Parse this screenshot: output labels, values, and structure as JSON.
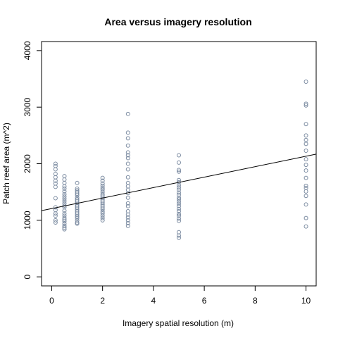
{
  "chart_data": {
    "type": "scatter",
    "title": "Area versus imagery resolution",
    "xlabel": "Imagery spatial resolution (m)",
    "ylabel": "Patch reef area (m^2)",
    "xlim": [
      -0.4,
      10.4
    ],
    "ylim": [
      -160,
      4160
    ],
    "xticks": [
      "0",
      "2",
      "4",
      "6",
      "8",
      "10"
    ],
    "yticks": [
      "0",
      "1000",
      "2000",
      "3000",
      "4000"
    ],
    "grid": false,
    "point_color": "#7a8aa0",
    "line_color": "#000000",
    "series": [
      {
        "points": [
          [
            0.15,
            2000
          ],
          [
            0.15,
            1960
          ],
          [
            0.15,
            1900
          ],
          [
            0.15,
            1820
          ],
          [
            0.15,
            1760
          ],
          [
            0.15,
            1700
          ],
          [
            0.15,
            1650
          ],
          [
            0.15,
            1590
          ],
          [
            0.15,
            1390
          ],
          [
            0.15,
            1230
          ],
          [
            0.15,
            1180
          ],
          [
            0.15,
            1120
          ],
          [
            0.15,
            1080
          ],
          [
            0.15,
            1000
          ],
          [
            0.15,
            960
          ],
          [
            0.5,
            1780
          ],
          [
            0.5,
            1720
          ],
          [
            0.5,
            1660
          ],
          [
            0.5,
            1600
          ],
          [
            0.5,
            1560
          ],
          [
            0.5,
            1510
          ],
          [
            0.5,
            1460
          ],
          [
            0.5,
            1420
          ],
          [
            0.5,
            1380
          ],
          [
            0.5,
            1340
          ],
          [
            0.5,
            1300
          ],
          [
            0.5,
            1260
          ],
          [
            0.5,
            1230
          ],
          [
            0.5,
            1170
          ],
          [
            0.5,
            1120
          ],
          [
            0.5,
            1080
          ],
          [
            0.5,
            1040
          ],
          [
            0.5,
            1010
          ],
          [
            0.5,
            980
          ],
          [
            0.5,
            940
          ],
          [
            0.5,
            900
          ],
          [
            0.5,
            870
          ],
          [
            0.5,
            840
          ],
          [
            1,
            1660
          ],
          [
            1,
            1560
          ],
          [
            1,
            1530
          ],
          [
            1,
            1500
          ],
          [
            1,
            1470
          ],
          [
            1,
            1440
          ],
          [
            1,
            1400
          ],
          [
            1,
            1370
          ],
          [
            1,
            1340
          ],
          [
            1,
            1310
          ],
          [
            1,
            1280
          ],
          [
            1,
            1250
          ],
          [
            1,
            1220
          ],
          [
            1,
            1190
          ],
          [
            1,
            1160
          ],
          [
            1,
            1130
          ],
          [
            1,
            1100
          ],
          [
            1,
            1070
          ],
          [
            1,
            1040
          ],
          [
            1,
            1000
          ],
          [
            1,
            960
          ],
          [
            1,
            940
          ],
          [
            2,
            1750
          ],
          [
            2,
            1700
          ],
          [
            2,
            1650
          ],
          [
            2,
            1610
          ],
          [
            2,
            1570
          ],
          [
            2,
            1540
          ],
          [
            2,
            1500
          ],
          [
            2,
            1460
          ],
          [
            2,
            1430
          ],
          [
            2,
            1400
          ],
          [
            2,
            1370
          ],
          [
            2,
            1340
          ],
          [
            2,
            1310
          ],
          [
            2,
            1280
          ],
          [
            2,
            1250
          ],
          [
            2,
            1220
          ],
          [
            2,
            1190
          ],
          [
            2,
            1150
          ],
          [
            2,
            1120
          ],
          [
            2,
            1080
          ],
          [
            2,
            1040
          ],
          [
            2,
            1000
          ],
          [
            3,
            2880
          ],
          [
            3,
            2550
          ],
          [
            3,
            2450
          ],
          [
            3,
            2320
          ],
          [
            3,
            2200
          ],
          [
            3,
            2150
          ],
          [
            3,
            2100
          ],
          [
            3,
            2000
          ],
          [
            3,
            1900
          ],
          [
            3,
            1760
          ],
          [
            3,
            1660
          ],
          [
            3,
            1600
          ],
          [
            3,
            1540
          ],
          [
            3,
            1480
          ],
          [
            3,
            1400
          ],
          [
            3,
            1300
          ],
          [
            3,
            1250
          ],
          [
            3,
            1160
          ],
          [
            3,
            1100
          ],
          [
            3,
            1050
          ],
          [
            3,
            1000
          ],
          [
            3,
            950
          ],
          [
            3,
            900
          ],
          [
            5,
            2150
          ],
          [
            5,
            2020
          ],
          [
            5,
            1890
          ],
          [
            5,
            1860
          ],
          [
            5,
            1710
          ],
          [
            5,
            1670
          ],
          [
            5,
            1620
          ],
          [
            5,
            1580
          ],
          [
            5,
            1540
          ],
          [
            5,
            1490
          ],
          [
            5,
            1450
          ],
          [
            5,
            1400
          ],
          [
            5,
            1370
          ],
          [
            5,
            1330
          ],
          [
            5,
            1290
          ],
          [
            5,
            1250
          ],
          [
            5,
            1200
          ],
          [
            5,
            1160
          ],
          [
            5,
            1110
          ],
          [
            5,
            1080
          ],
          [
            5,
            1030
          ],
          [
            5,
            990
          ],
          [
            5,
            790
          ],
          [
            5,
            730
          ],
          [
            5,
            690
          ],
          [
            10,
            3450
          ],
          [
            10,
            3060
          ],
          [
            10,
            3030
          ],
          [
            10,
            2700
          ],
          [
            10,
            2500
          ],
          [
            10,
            2420
          ],
          [
            10,
            2350
          ],
          [
            10,
            2230
          ],
          [
            10,
            2080
          ],
          [
            10,
            1980
          ],
          [
            10,
            1880
          ],
          [
            10,
            1750
          ],
          [
            10,
            1610
          ],
          [
            10,
            1570
          ],
          [
            10,
            1510
          ],
          [
            10,
            1430
          ],
          [
            10,
            1280
          ],
          [
            10,
            1040
          ],
          [
            10,
            890
          ]
        ]
      }
    ],
    "trendline": {
      "x": [
        -0.4,
        10.4
      ],
      "y": [
        1170,
        2170
      ]
    }
  }
}
